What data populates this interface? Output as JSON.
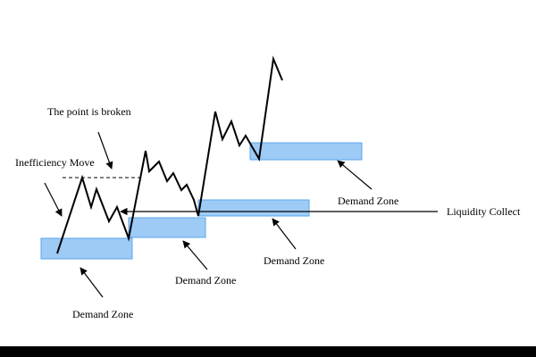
{
  "colors": {
    "background": "#ffffff",
    "zone_fill": "#9ecbf5",
    "zone_stroke": "#5aa5ee",
    "line": "#000000",
    "bottom_bar": "#000000"
  },
  "labels": {
    "point_broken": "The point is broken",
    "inefficiency_move": "Inefficiency Move",
    "demand_zone_1": "Demand Zone",
    "demand_zone_2": "Demand Zone",
    "demand_zone_3": "Demand Zone",
    "demand_zone_4": "Demand Zone",
    "liquidity_collect": "Liquidity Collect"
  }
}
